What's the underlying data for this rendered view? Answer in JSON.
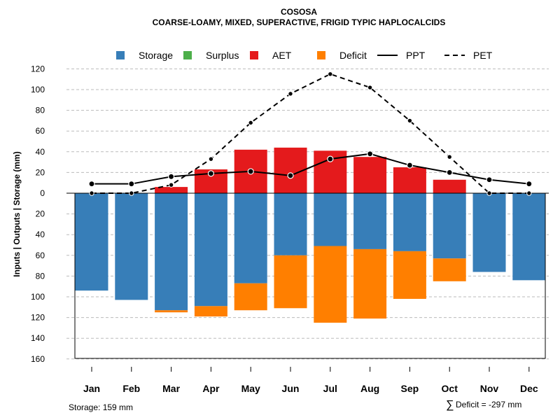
{
  "chart_data": {
    "type": "bar",
    "title": "COSOSA",
    "subtitle": "COARSE-LOAMY, MIXED, SUPERACTIVE, FRIGID TYPIC HAPLOCALCIDS",
    "ylabel": "Inputs | Outputs | Storage    (mm)",
    "ylim_top": [
      0,
      120
    ],
    "ylim_bottom": [
      0,
      160
    ],
    "y_ticks_top": [
      0,
      20,
      40,
      60,
      80,
      100,
      120
    ],
    "y_ticks_bottom": [
      20,
      40,
      60,
      80,
      100,
      120,
      140,
      160
    ],
    "categories": [
      "Jan",
      "Feb",
      "Mar",
      "Apr",
      "May",
      "Jun",
      "Jul",
      "Aug",
      "Sep",
      "Oct",
      "Nov",
      "Dec"
    ],
    "legend": [
      {
        "name": "Storage",
        "type": "box",
        "color": "#377EB8"
      },
      {
        "name": "Surplus",
        "type": "box",
        "color": "#4DAF4A"
      },
      {
        "name": "AET",
        "type": "box",
        "color": "#E41A1C"
      },
      {
        "name": "Deficit",
        "type": "box",
        "color": "#FF7F00"
      },
      {
        "name": "PPT",
        "type": "solid"
      },
      {
        "name": "PET",
        "type": "dashed"
      }
    ],
    "series": [
      {
        "name": "Storage",
        "color": "#377EB8",
        "values": [
          94,
          103,
          113,
          109,
          87,
          60,
          51,
          54,
          56,
          63,
          76,
          84
        ]
      },
      {
        "name": "Deficit",
        "color": "#FF7F00",
        "values": [
          0,
          0,
          2,
          10,
          26,
          51,
          74,
          67,
          46,
          22,
          0,
          0
        ]
      },
      {
        "name": "AET",
        "color": "#E41A1C",
        "values": [
          0,
          0,
          6,
          23,
          42,
          44,
          41,
          35,
          25,
          13,
          0,
          0
        ]
      },
      {
        "name": "Surplus",
        "color": "#4DAF4A",
        "values": [
          0,
          0,
          0,
          0,
          0,
          0,
          0,
          0,
          0,
          0,
          0,
          0
        ]
      },
      {
        "name": "PPT",
        "values": [
          9,
          9,
          16,
          19,
          21,
          17,
          33,
          38,
          27,
          20,
          13,
          9
        ]
      },
      {
        "name": "PET",
        "values": [
          0,
          0,
          8,
          33,
          68,
          96,
          115,
          102,
          70,
          35,
          0,
          0
        ]
      }
    ]
  },
  "notes": {
    "storage": "Storage: 159 mm",
    "deficit_symbol": "∑",
    "deficit": "Deficit = -297 mm"
  }
}
